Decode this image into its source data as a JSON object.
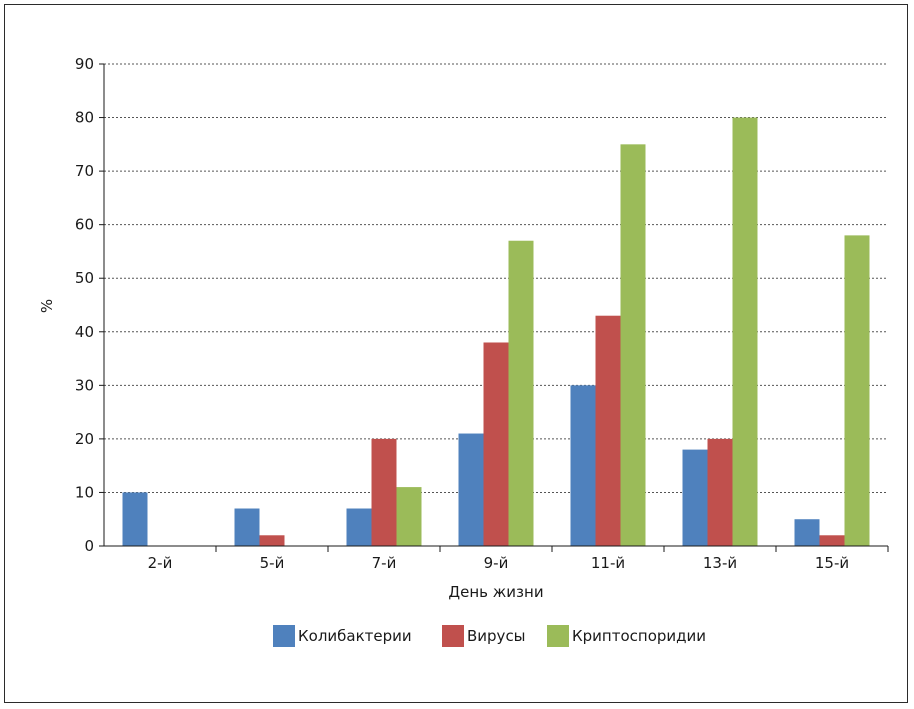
{
  "chart_data": {
    "type": "bar",
    "categories": [
      "2-й",
      "5-й",
      "7-й",
      "9-й",
      "11-й",
      "13-й",
      "15-й"
    ],
    "series": [
      {
        "name": "Колибактерии",
        "color": "#4f81bd",
        "values": [
          10,
          7,
          7,
          21,
          30,
          18,
          5
        ]
      },
      {
        "name": "Вирусы",
        "color": "#c0504d",
        "values": [
          0,
          2,
          20,
          38,
          43,
          20,
          2
        ]
      },
      {
        "name": "Криптоспоридии",
        "color": "#9bbb59",
        "values": [
          0,
          0,
          11,
          57,
          75,
          80,
          58
        ]
      }
    ],
    "xlabel": "День жизни",
    "ylabel": "%",
    "ylim": [
      0,
      90
    ],
    "yticks": [
      0,
      10,
      20,
      30,
      40,
      50,
      60,
      70,
      80,
      90
    ],
    "grid": true,
    "legend_position": "bottom"
  }
}
